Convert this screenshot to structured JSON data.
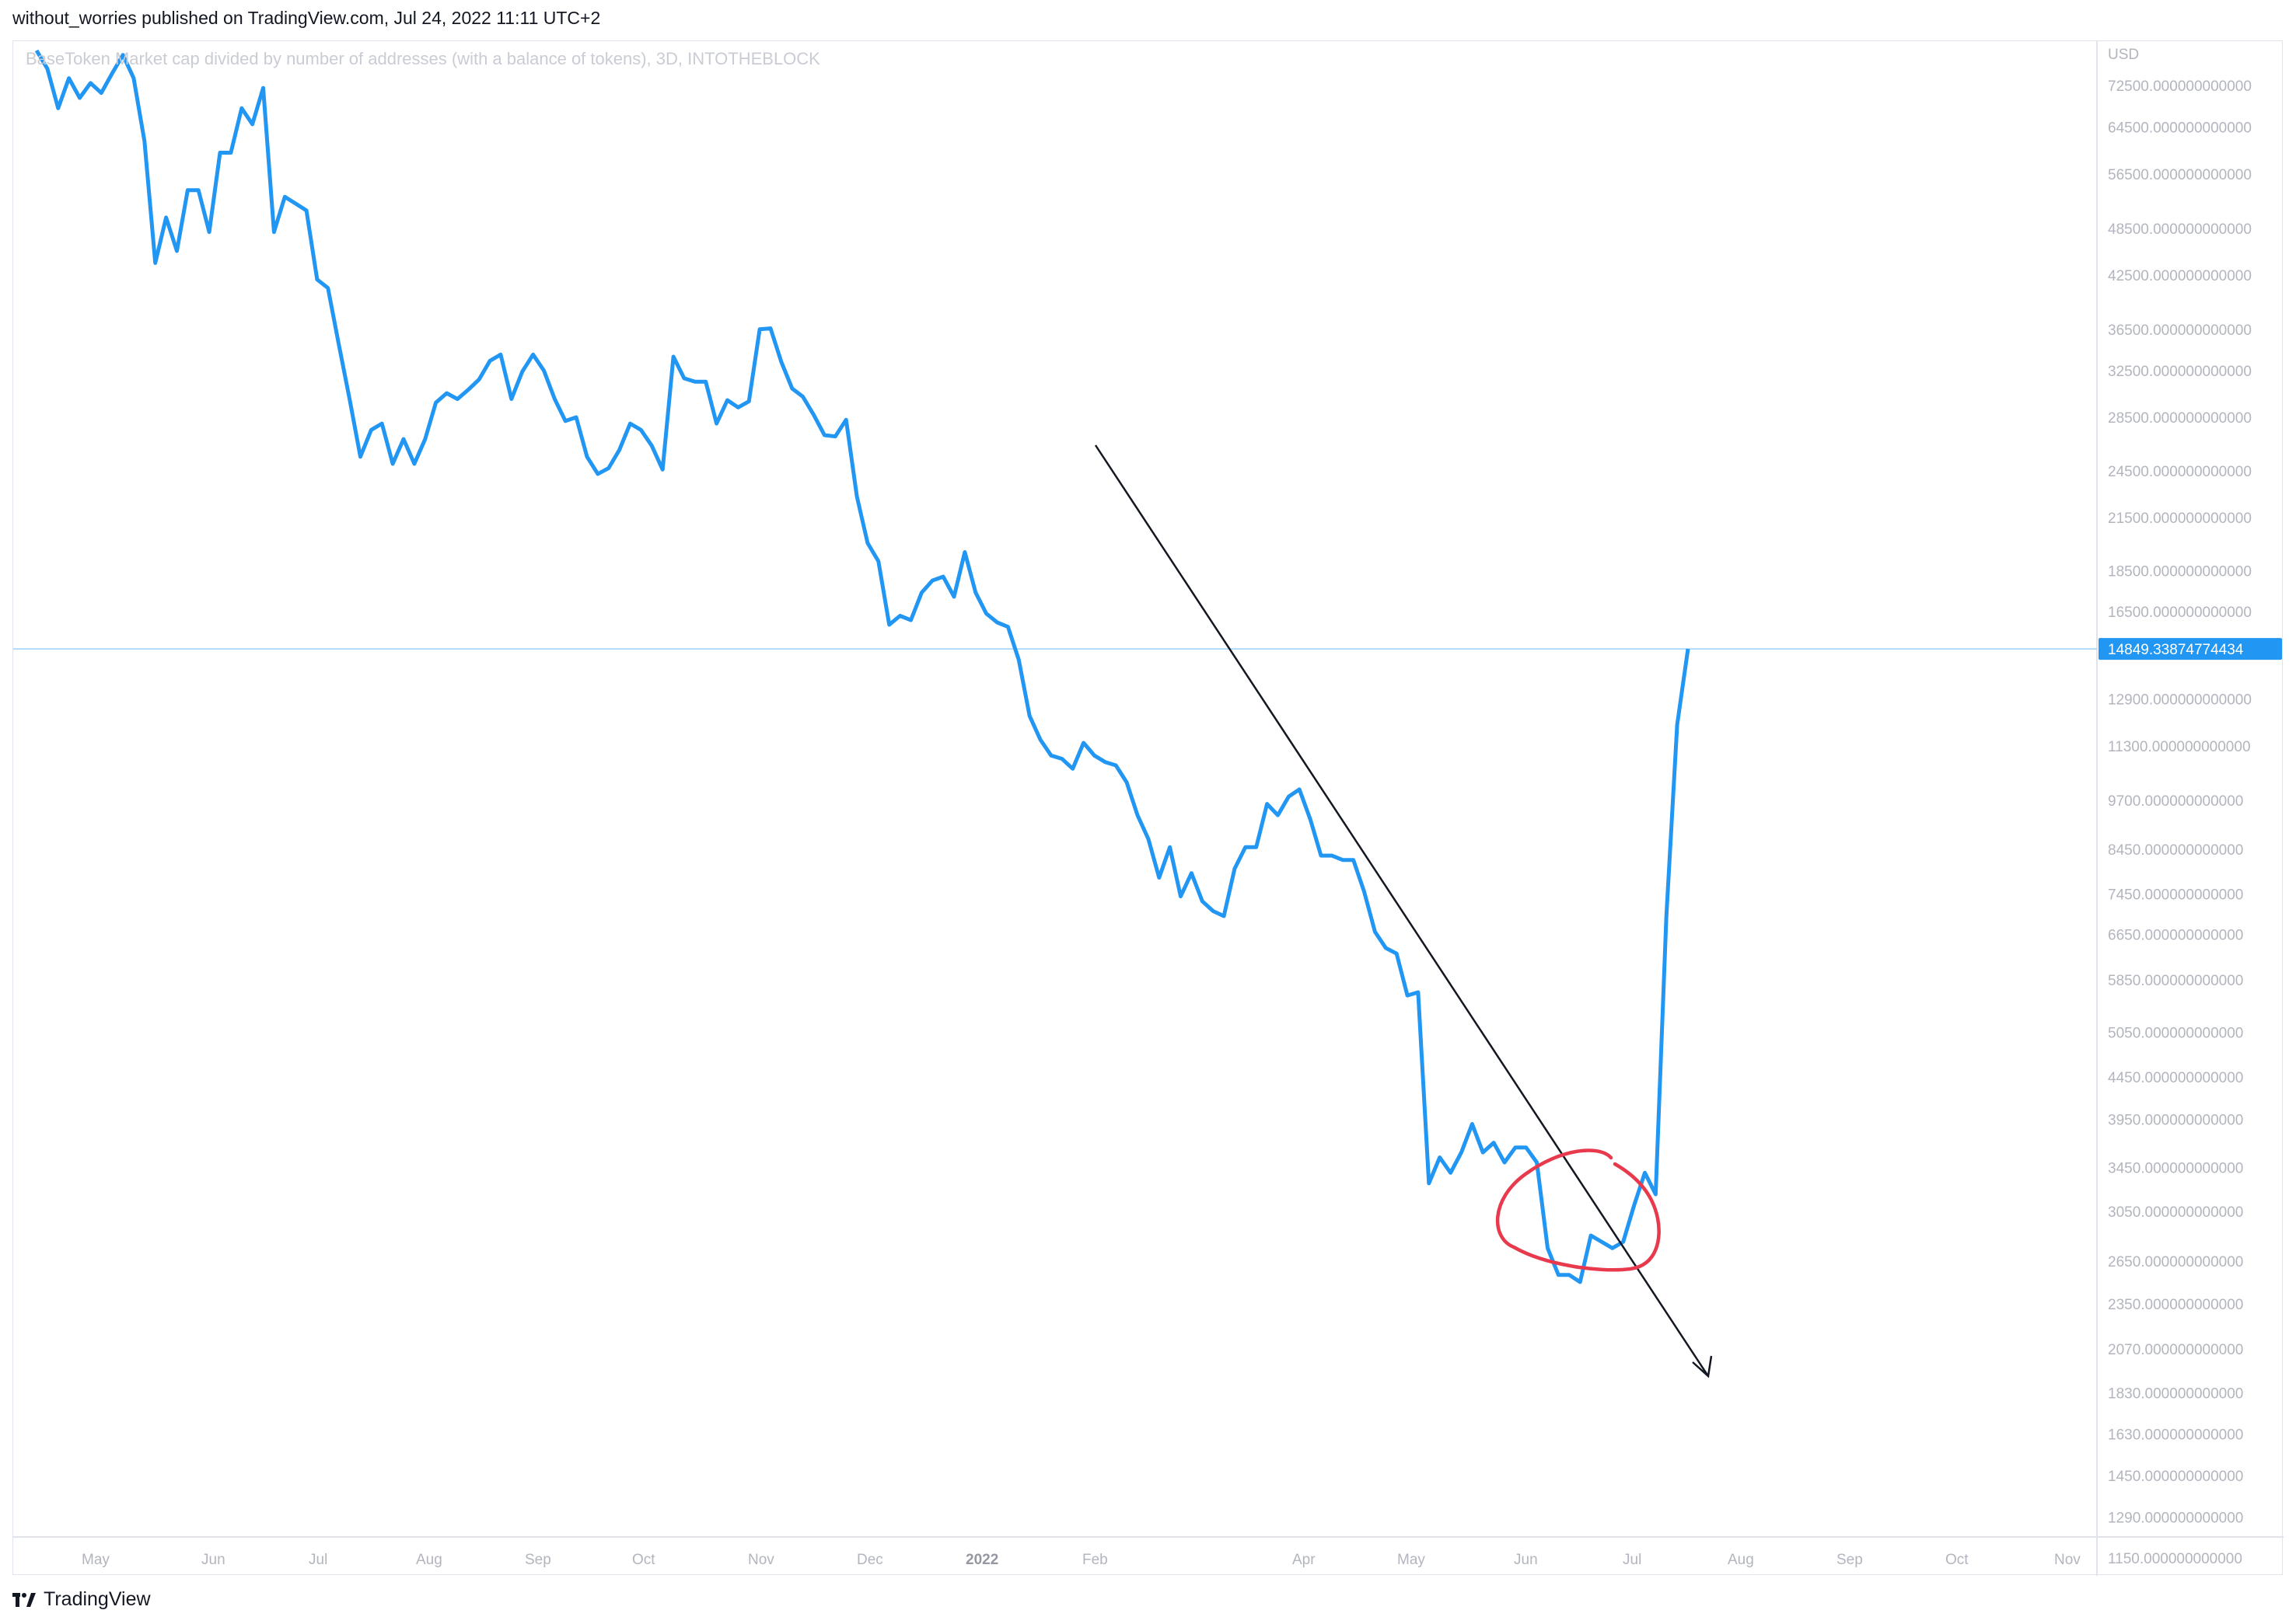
{
  "header": {
    "published_line": "without_worries published on TradingView.com, Jul 24, 2022 11:11 UTC+2"
  },
  "footer": {
    "brand": "TradingView"
  },
  "colors": {
    "series_line": "#2196f3",
    "trend_arrow": "#131722",
    "annotation_circle": "#e8394d",
    "price_tag_bg": "#2196f3",
    "grid_axis": "#e0e3eb"
  },
  "chart_data": {
    "type": "line",
    "title": "BaseToken Market cap divided by number of addresses (with a balance of tokens), 3D, INTOTHEBLOCK",
    "currency_label": "USD",
    "y_scale": "log",
    "y_ticks": [
      "72500.000000000000",
      "64500.000000000000",
      "56500.000000000000",
      "48500.000000000000",
      "42500.000000000000",
      "36500.000000000000",
      "32500.000000000000",
      "28500.000000000000",
      "24500.000000000000",
      "21500.000000000000",
      "18500.000000000000",
      "16500.000000000000",
      "12900.000000000000",
      "11300.000000000000",
      "9700.000000000000",
      "8450.000000000000",
      "7450.000000000000",
      "6650.000000000000",
      "5850.000000000000",
      "5050.000000000000",
      "4450.000000000000",
      "3950.000000000000",
      "3450.000000000000",
      "3050.000000000000",
      "2650.000000000000",
      "2350.000000000000",
      "2070.000000000000",
      "1830.000000000000",
      "1630.000000000000",
      "1450.000000000000",
      "1290.000000000000",
      "1150.000000000000"
    ],
    "x_ticks": [
      {
        "label": "May",
        "bold": false
      },
      {
        "label": "Jun",
        "bold": false
      },
      {
        "label": "Jul",
        "bold": false
      },
      {
        "label": "Aug",
        "bold": false
      },
      {
        "label": "Sep",
        "bold": false
      },
      {
        "label": "Oct",
        "bold": false
      },
      {
        "label": "Nov",
        "bold": false
      },
      {
        "label": "Dec",
        "bold": false
      },
      {
        "label": "2022",
        "bold": true
      },
      {
        "label": "Feb",
        "bold": false
      },
      {
        "label": "Apr",
        "bold": false
      },
      {
        "label": "May",
        "bold": false
      },
      {
        "label": "Jun",
        "bold": false
      },
      {
        "label": "Jul",
        "bold": false
      },
      {
        "label": "Aug",
        "bold": false
      },
      {
        "label": "Sep",
        "bold": false
      },
      {
        "label": "Oct",
        "bold": false
      },
      {
        "label": "Nov",
        "bold": false
      }
    ],
    "last_value_label": "14849.33874774434",
    "last_value": 14849.34,
    "series": [
      {
        "values": [
          80000,
          76000,
          68000,
          74000,
          70000,
          73000,
          71000,
          75000,
          79000,
          74000,
          62000,
          44000,
          50000,
          45500,
          54000,
          54000,
          48000,
          60000,
          60000,
          68000,
          65000,
          72000,
          48000,
          53000,
          52000,
          51000,
          42000,
          41000,
          35000,
          30000,
          25500,
          27500,
          28000,
          25000,
          26800,
          25000,
          26800,
          29700,
          30500,
          30000,
          30800,
          31700,
          33400,
          34000,
          30000,
          32400,
          34000,
          32500,
          30000,
          28200,
          28500,
          25500,
          24300,
          24700,
          26000,
          28000,
          27500,
          26300,
          24600,
          33800,
          31800,
          31500,
          31500,
          28000,
          29900,
          29300,
          29800,
          36500,
          36600,
          33300,
          30900,
          30200,
          28700,
          27100,
          27000,
          28300,
          22800,
          20000,
          19000,
          15900,
          16300,
          16100,
          17400,
          18000,
          18200,
          17200,
          19500,
          17400,
          16400,
          16000,
          15800,
          14400,
          12300,
          11500,
          11000,
          10900,
          10600,
          11400,
          11000,
          10800,
          10700,
          10200,
          9300,
          8700,
          7800,
          8500,
          7400,
          7900,
          7300,
          7100,
          7000,
          8000,
          8500,
          8500,
          9600,
          9300,
          9800,
          10000,
          9200,
          8300,
          8300,
          8200,
          8200,
          7500,
          6700,
          6400,
          6300,
          5600,
          5650,
          3300,
          3550,
          3400,
          3600,
          3900,
          3600,
          3700,
          3500,
          3650,
          3650,
          3500,
          2750,
          2550,
          2550,
          2500,
          2850,
          2800,
          2750,
          2800,
          3100,
          3400,
          3200,
          7000,
          12000,
          14849.34
        ]
      }
    ],
    "annotations": [
      {
        "type": "trend_arrow",
        "direction": "down-right"
      },
      {
        "type": "hand_drawn_circle",
        "around": "Jun-Jul 2022 low"
      }
    ]
  }
}
